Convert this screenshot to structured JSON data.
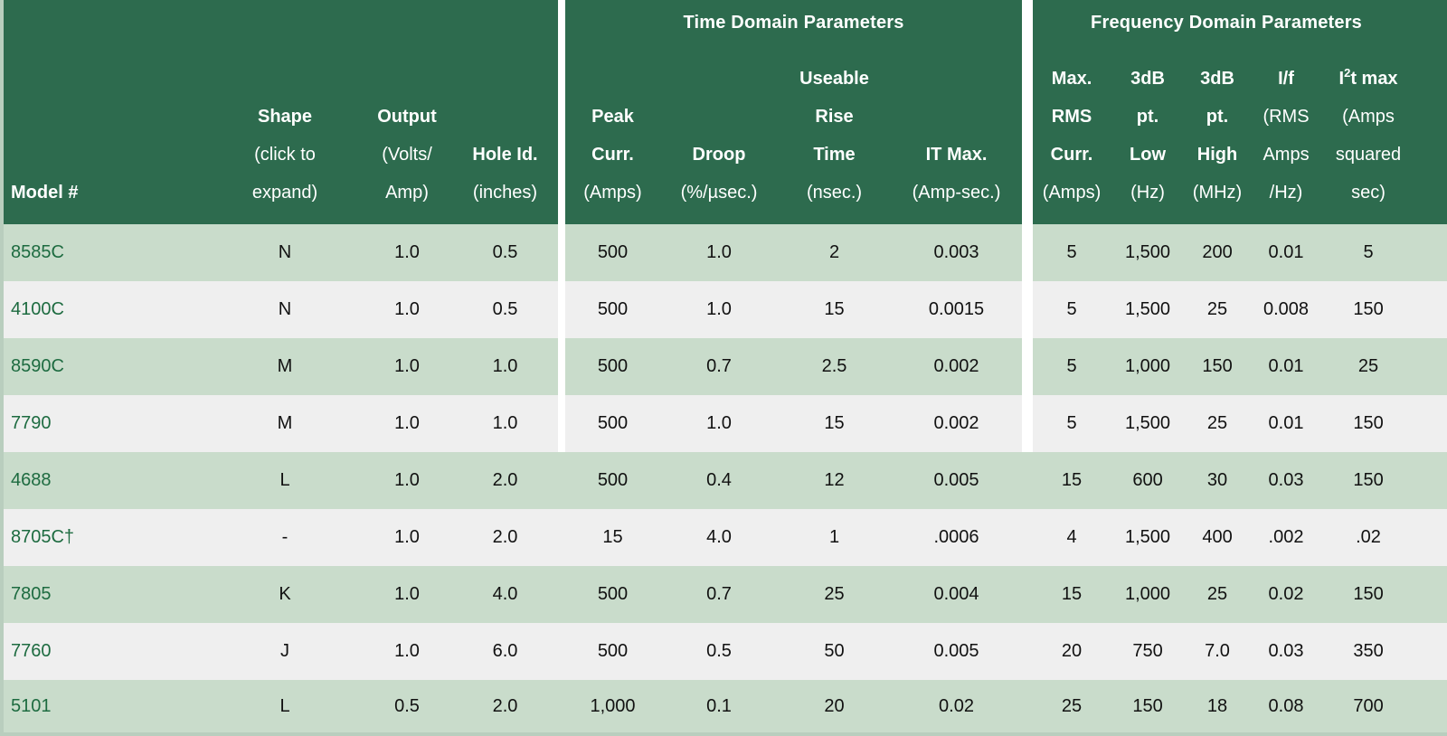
{
  "colors": {
    "header_bg": "#2d6b4e",
    "row_green": "#c9dccb",
    "row_gray": "#efefef",
    "page_bg": "#b9cebe",
    "link_green": "#1d6b40",
    "divider_white": "#ffffff",
    "body_text": "#111111",
    "header_text": "#ffffff"
  },
  "table": {
    "sections": {
      "main": {
        "title": ""
      },
      "time": {
        "title": "Time Domain Parameters"
      },
      "freq": {
        "title": "Frequency Domain Parameters"
      }
    },
    "columns": [
      {
        "id": "model",
        "type": "data",
        "header_lines": [
          {
            "text": "Model #",
            "bold": true
          }
        ]
      },
      {
        "id": "shape",
        "type": "data",
        "header_lines": [
          {
            "text": "Shape",
            "bold": true
          },
          {
            "text": "(click to",
            "bold": false
          },
          {
            "text": "expand)",
            "bold": false
          }
        ]
      },
      {
        "id": "output",
        "type": "data",
        "header_lines": [
          {
            "text": "Output",
            "bold": true
          },
          {
            "text": "(Volts/",
            "bold": false
          },
          {
            "text": "Amp)",
            "bold": false
          }
        ]
      },
      {
        "id": "hole",
        "type": "data",
        "header_lines": [
          {
            "text": "Hole Id.",
            "bold": true
          },
          {
            "text": "(inches)",
            "bold": false
          }
        ]
      },
      {
        "id": "div1",
        "type": "divider"
      },
      {
        "id": "peak",
        "type": "data",
        "header_lines": [
          {
            "text": "Peak",
            "bold": true
          },
          {
            "text": "Curr.",
            "bold": true
          },
          {
            "text": "(Amps)",
            "bold": false
          }
        ]
      },
      {
        "id": "droop",
        "type": "data",
        "header_lines": [
          {
            "text": "Droop",
            "bold": true
          },
          {
            "text": "(%/µsec.)",
            "bold": false
          }
        ]
      },
      {
        "id": "rise",
        "type": "data",
        "header_lines": [
          {
            "text": "Useable",
            "bold": true
          },
          {
            "text": "Rise",
            "bold": true
          },
          {
            "text": "Time",
            "bold": true
          },
          {
            "text": "(nsec.)",
            "bold": false
          }
        ]
      },
      {
        "id": "itmax",
        "type": "data",
        "header_lines": [
          {
            "text": "IT Max.",
            "bold": true
          },
          {
            "text": "(Amp-sec.)",
            "bold": false
          }
        ]
      },
      {
        "id": "div2",
        "type": "divider"
      },
      {
        "id": "maxrms",
        "type": "data",
        "header_lines": [
          {
            "text": "Max.",
            "bold": true
          },
          {
            "text": "RMS",
            "bold": true
          },
          {
            "text": "Curr.",
            "bold": true
          },
          {
            "text": "(Amps)",
            "bold": false
          }
        ]
      },
      {
        "id": "low",
        "type": "data",
        "header_lines": [
          {
            "text": "3dB",
            "bold": true
          },
          {
            "text": "pt.",
            "bold": true
          },
          {
            "text": "Low",
            "bold": true
          },
          {
            "text": "(Hz)",
            "bold": false
          }
        ]
      },
      {
        "id": "high",
        "type": "data",
        "header_lines": [
          {
            "text": "3dB",
            "bold": true
          },
          {
            "text": "pt.",
            "bold": true
          },
          {
            "text": "High",
            "bold": true
          },
          {
            "text": "(MHz)",
            "bold": false
          }
        ]
      },
      {
        "id": "iof",
        "type": "data",
        "header_lines": [
          {
            "text": "I/f",
            "bold": true
          },
          {
            "text": "(RMS",
            "bold": false
          },
          {
            "text": "Amps",
            "bold": false
          },
          {
            "text": "/Hz)",
            "bold": false
          }
        ]
      },
      {
        "id": "i2t",
        "type": "data",
        "header_lines": [
          {
            "bold": true,
            "parts": [
              {
                "text": "I"
              },
              {
                "text": "2",
                "sup": true
              },
              {
                "text": "t max"
              }
            ]
          },
          {
            "text": "(Amps",
            "bold": false
          },
          {
            "text": "squared",
            "bold": false
          },
          {
            "text": "sec)",
            "bold": false
          }
        ]
      }
    ],
    "rows": [
      {
        "divider_white": true,
        "cells": {
          "model": "8585C",
          "shape": "N",
          "output": "1.0",
          "hole": "0.5",
          "peak": "500",
          "droop": "1.0",
          "rise": "2",
          "itmax": "0.003",
          "maxrms": "5",
          "low": "1,500",
          "high": "200",
          "iof": "0.01",
          "i2t": "5"
        }
      },
      {
        "divider_white": true,
        "cells": {
          "model": "4100C",
          "shape": "N",
          "output": "1.0",
          "hole": "0.5",
          "peak": "500",
          "droop": "1.0",
          "rise": "15",
          "itmax": "0.0015",
          "maxrms": "5",
          "low": "1,500",
          "high": "25",
          "iof": "0.008",
          "i2t": "150"
        }
      },
      {
        "divider_white": true,
        "cells": {
          "model": "8590C",
          "shape": "M",
          "output": "1.0",
          "hole": "1.0",
          "peak": "500",
          "droop": "0.7",
          "rise": "2.5",
          "itmax": "0.002",
          "maxrms": "5",
          "low": "1,000",
          "high": "150",
          "iof": "0.01",
          "i2t": "25"
        }
      },
      {
        "divider_white": true,
        "cells": {
          "model": "7790",
          "shape": "M",
          "output": "1.0",
          "hole": "1.0",
          "peak": "500",
          "droop": "1.0",
          "rise": "15",
          "itmax": "0.002",
          "maxrms": "5",
          "low": "1,500",
          "high": "25",
          "iof": "0.01",
          "i2t": "150"
        }
      },
      {
        "divider_white": false,
        "cells": {
          "model": "4688",
          "shape": "L",
          "output": "1.0",
          "hole": "2.0",
          "peak": "500",
          "droop": "0.4",
          "rise": "12",
          "itmax": "0.005",
          "maxrms": "15",
          "low": "600",
          "high": "30",
          "iof": "0.03",
          "i2t": "150"
        }
      },
      {
        "divider_white": false,
        "cells": {
          "model": "8705C†",
          "shape": "-",
          "output": "1.0",
          "hole": "2.0",
          "peak": "15",
          "droop": "4.0",
          "rise": "1",
          "itmax": ".0006",
          "maxrms": "4",
          "low": "1,500",
          "high": "400",
          "iof": ".002",
          "i2t": ".02"
        }
      },
      {
        "divider_white": false,
        "cells": {
          "model": "7805",
          "shape": "K",
          "output": "1.0",
          "hole": "4.0",
          "peak": "500",
          "droop": "0.7",
          "rise": "25",
          "itmax": "0.004",
          "maxrms": "15",
          "low": "1,000",
          "high": "25",
          "iof": "0.02",
          "i2t": "150"
        }
      },
      {
        "divider_white": false,
        "cells": {
          "model": "7760",
          "shape": "J",
          "output": "1.0",
          "hole": "6.0",
          "peak": "500",
          "droop": "0.5",
          "rise": "50",
          "itmax": "0.005",
          "maxrms": "20",
          "low": "750",
          "high": "7.0",
          "iof": "0.03",
          "i2t": "350"
        }
      },
      {
        "divider_white": false,
        "cells": {
          "model": "5101",
          "shape": "L",
          "output": "0.5",
          "hole": "2.0",
          "peak": "1,000",
          "droop": "0.1",
          "rise": "20",
          "itmax": "0.02",
          "maxrms": "25",
          "low": "150",
          "high": "18",
          "iof": "0.08",
          "i2t": "700"
        }
      }
    ]
  }
}
